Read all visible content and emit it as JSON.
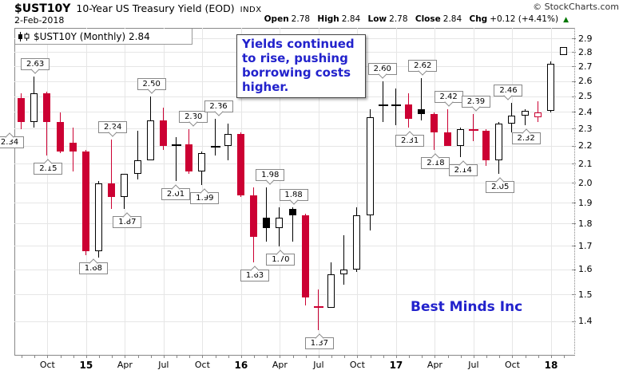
{
  "header": {
    "symbol": "$UST10Y",
    "title": "10-Year US Treasury Yield (EOD)",
    "exchange": "INDX",
    "date": "2-Feb-2018",
    "copyright": "© StockCharts.com",
    "quote": {
      "fields": [
        {
          "label": "Open",
          "value": "2.78"
        },
        {
          "label": "High",
          "value": "2.84"
        },
        {
          "label": "Low",
          "value": "2.78"
        },
        {
          "label": "Close",
          "value": "2.84"
        },
        {
          "label": "Chg",
          "value": "+0.12 (+4.41%)"
        }
      ],
      "direction_symbol": "▲",
      "direction": "up"
    }
  },
  "legend": {
    "text": "$UST10Y (Monthly) 2.84"
  },
  "annotations": {
    "callout": "Yields continued to rise, pushing borrowing costs higher.",
    "watermark": "Best Minds Inc"
  },
  "colors": {
    "down_red": "#cc0033",
    "up_border": "#000000",
    "black_fill": "#000000",
    "annotation_blue": "#2222cc",
    "grid": "#e6e6e6",
    "axis": "#888888",
    "chg_up_green": "#007700"
  },
  "chart_data": {
    "type": "candlestick",
    "symbol": "$UST10Y",
    "timeframe": "Monthly",
    "scale": "log",
    "grid": true,
    "y_domain": [
      1.285,
      2.984
    ],
    "y_ticks": [
      2.9,
      2.8,
      2.7,
      2.6,
      2.5,
      2.4,
      2.3,
      2.2,
      2.1,
      2.0,
      1.9,
      1.8,
      1.7,
      1.6,
      1.5,
      1.4
    ],
    "x_ticks": [
      {
        "index": 2,
        "label": "Oct",
        "bold": false
      },
      {
        "index": 5,
        "label": "15",
        "bold": true
      },
      {
        "index": 8,
        "label": "Apr",
        "bold": false
      },
      {
        "index": 11,
        "label": "Jul",
        "bold": false
      },
      {
        "index": 14,
        "label": "Oct",
        "bold": false
      },
      {
        "index": 17,
        "label": "16",
        "bold": true
      },
      {
        "index": 20,
        "label": "Apr",
        "bold": false
      },
      {
        "index": 23,
        "label": "Jul",
        "bold": false
      },
      {
        "index": 26,
        "label": "Oct",
        "bold": false
      },
      {
        "index": 29,
        "label": "17",
        "bold": true
      },
      {
        "index": 32,
        "label": "Apr",
        "bold": false
      },
      {
        "index": 35,
        "label": "Jul",
        "bold": false
      },
      {
        "index": 38,
        "label": "Oct",
        "bold": false
      },
      {
        "index": 41,
        "label": "18",
        "bold": true
      }
    ],
    "candles": [
      {
        "date": "Aug 2014",
        "o": 2.49,
        "h": 2.52,
        "l": 2.3,
        "c": 2.34,
        "style": "red",
        "label": {
          "text": "2.34",
          "pos": "below",
          "dx": -16
        }
      },
      {
        "date": "Sep 2014",
        "o": 2.34,
        "h": 2.63,
        "l": 2.31,
        "c": 2.52,
        "style": "white",
        "label": {
          "text": "2.63",
          "pos": "above",
          "dx": 0
        }
      },
      {
        "date": "Oct 2014",
        "o": 2.52,
        "h": 2.53,
        "l": 2.15,
        "c": 2.34,
        "style": "red",
        "label": {
          "text": "2.15",
          "pos": "below",
          "dx": 0
        }
      },
      {
        "date": "Nov 2014",
        "o": 2.34,
        "h": 2.4,
        "l": 2.16,
        "c": 2.17,
        "style": "red"
      },
      {
        "date": "Dec 2014",
        "o": 2.22,
        "h": 2.31,
        "l": 2.06,
        "c": 2.17,
        "style": "red"
      },
      {
        "date": "Jan 2015",
        "o": 2.17,
        "h": 2.18,
        "l": 1.66,
        "c": 1.68,
        "style": "red",
        "label": {
          "text": "1.68",
          "pos": "below",
          "dx": 8
        }
      },
      {
        "date": "Feb 2015",
        "o": 1.68,
        "h": 2.01,
        "l": 1.65,
        "c": 2.0,
        "style": "white"
      },
      {
        "date": "Mar 2015",
        "o": 2.0,
        "h": 2.24,
        "l": 1.87,
        "c": 1.93,
        "style": "red",
        "label": {
          "text": "2.24",
          "pos": "above",
          "dx": 0
        }
      },
      {
        "date": "Apr 2015",
        "o": 1.93,
        "h": 2.05,
        "l": 1.87,
        "c": 2.05,
        "style": "white",
        "label": {
          "text": "1.87",
          "pos": "below",
          "dx": 2
        }
      },
      {
        "date": "May 2015",
        "o": 2.05,
        "h": 2.29,
        "l": 2.02,
        "c": 2.12,
        "style": "white"
      },
      {
        "date": "Jun 2015",
        "o": 2.12,
        "h": 2.5,
        "l": 2.12,
        "c": 2.35,
        "style": "white",
        "label": {
          "text": "2.50",
          "pos": "above",
          "dx": 0
        }
      },
      {
        "date": "Jul 2015",
        "o": 2.35,
        "h": 2.43,
        "l": 2.18,
        "c": 2.2,
        "style": "red"
      },
      {
        "date": "Aug 2015",
        "o": 2.2,
        "h": 2.25,
        "l": 2.01,
        "c": 2.21,
        "style": "white",
        "label": {
          "text": "2.01",
          "pos": "below",
          "dx": -2
        }
      },
      {
        "date": "Sep 2015",
        "o": 2.21,
        "h": 2.3,
        "l": 2.05,
        "c": 2.06,
        "style": "red",
        "label": {
          "text": "2.30",
          "pos": "above",
          "dx": 4
        }
      },
      {
        "date": "Oct 2015",
        "o": 2.06,
        "h": 2.17,
        "l": 1.99,
        "c": 2.16,
        "style": "white",
        "label": {
          "text": "1.99",
          "pos": "below",
          "dx": 2
        }
      },
      {
        "date": "Nov 2015",
        "o": 2.19,
        "h": 2.36,
        "l": 2.15,
        "c": 2.2,
        "style": "black",
        "label": {
          "text": "2.36",
          "pos": "above",
          "dx": 3
        }
      },
      {
        "date": "Dec 2015",
        "o": 2.2,
        "h": 2.33,
        "l": 2.12,
        "c": 2.27,
        "style": "white"
      },
      {
        "date": "Jan 2016",
        "o": 2.27,
        "h": 2.28,
        "l": 1.93,
        "c": 1.94,
        "style": "red"
      },
      {
        "date": "Feb 2016",
        "o": 1.94,
        "h": 1.98,
        "l": 1.63,
        "c": 1.74,
        "style": "red",
        "label": {
          "text": "1.63",
          "pos": "below",
          "dx": 0
        }
      },
      {
        "date": "Mar 2016",
        "o": 1.83,
        "h": 1.98,
        "l": 1.72,
        "c": 1.78,
        "style": "black",
        "label": {
          "text": "1.98",
          "pos": "above",
          "dx": 3
        }
      },
      {
        "date": "Apr 2016",
        "o": 1.78,
        "h": 1.88,
        "l": 1.7,
        "c": 1.83,
        "style": "white",
        "label": {
          "text": "1.70",
          "pos": "below",
          "dx": 0
        }
      },
      {
        "date": "May 2016",
        "o": 1.87,
        "h": 1.88,
        "l": 1.72,
        "c": 1.84,
        "style": "black",
        "label": {
          "text": "1.88",
          "pos": "above",
          "dx": 0
        }
      },
      {
        "date": "Jun 2016",
        "o": 1.84,
        "h": 1.85,
        "l": 1.46,
        "c": 1.49,
        "style": "red"
      },
      {
        "date": "Jul 2016",
        "o": 1.46,
        "h": 1.52,
        "l": 1.37,
        "c": 1.45,
        "style": "red",
        "label": {
          "text": "1.37",
          "pos": "below",
          "dx": 0
        }
      },
      {
        "date": "Aug 2016",
        "o": 1.45,
        "h": 1.63,
        "l": 1.45,
        "c": 1.58,
        "style": "white"
      },
      {
        "date": "Sep 2016",
        "o": 1.58,
        "h": 1.75,
        "l": 1.54,
        "c": 1.6,
        "style": "white"
      },
      {
        "date": "Oct 2016",
        "o": 1.6,
        "h": 1.88,
        "l": 1.59,
        "c": 1.84,
        "style": "white"
      },
      {
        "date": "Nov 2016",
        "o": 1.84,
        "h": 2.42,
        "l": 1.77,
        "c": 2.37,
        "style": "white"
      },
      {
        "date": "Dec 2016",
        "o": 2.45,
        "h": 2.6,
        "l": 2.34,
        "c": 2.44,
        "style": "black",
        "label": {
          "text": "2.60",
          "pos": "above",
          "dx": -2
        }
      },
      {
        "date": "Jan 2017",
        "o": 2.45,
        "h": 2.55,
        "l": 2.32,
        "c": 2.44,
        "style": "black"
      },
      {
        "date": "Feb 2017",
        "o": 2.45,
        "h": 2.52,
        "l": 2.31,
        "c": 2.36,
        "style": "red",
        "label": {
          "text": "2.31",
          "pos": "below",
          "dx": 0
        }
      },
      {
        "date": "Mar 2017",
        "o": 2.42,
        "h": 2.62,
        "l": 2.35,
        "c": 2.39,
        "style": "black",
        "label": {
          "text": "2.62",
          "pos": "above",
          "dx": 0
        }
      },
      {
        "date": "Apr 2017",
        "o": 2.39,
        "h": 2.4,
        "l": 2.18,
        "c": 2.28,
        "style": "red",
        "label": {
          "text": "2.18",
          "pos": "below",
          "dx": 0
        }
      },
      {
        "date": "May 2017",
        "o": 2.28,
        "h": 2.42,
        "l": 2.2,
        "c": 2.2,
        "style": "red",
        "label": {
          "text": "2.42",
          "pos": "above",
          "dx": 0
        }
      },
      {
        "date": "Jun 2017",
        "o": 2.2,
        "h": 2.31,
        "l": 2.14,
        "c": 2.3,
        "style": "white",
        "label": {
          "text": "2.14",
          "pos": "below",
          "dx": 2
        }
      },
      {
        "date": "Jul 2017",
        "o": 2.3,
        "h": 2.39,
        "l": 2.23,
        "c": 2.29,
        "style": "red",
        "label": {
          "text": "2.39",
          "pos": "above",
          "dx": 2
        }
      },
      {
        "date": "Aug 2017",
        "o": 2.29,
        "h": 2.3,
        "l": 2.09,
        "c": 2.12,
        "style": "red"
      },
      {
        "date": "Sep 2017",
        "o": 2.12,
        "h": 2.34,
        "l": 2.05,
        "c": 2.33,
        "style": "white",
        "label": {
          "text": "2.05",
          "pos": "below",
          "dx": 0
        }
      },
      {
        "date": "Oct 2017",
        "o": 2.33,
        "h": 2.46,
        "l": 2.28,
        "c": 2.38,
        "style": "white",
        "label": {
          "text": "2.46",
          "pos": "above",
          "dx": -6
        }
      },
      {
        "date": "Nov 2017",
        "o": 2.38,
        "h": 2.42,
        "l": 2.32,
        "c": 2.41,
        "style": "white",
        "label": {
          "text": "2.32",
          "pos": "below",
          "dx": 0
        }
      },
      {
        "date": "Dec 2017",
        "o": 2.37,
        "h": 2.47,
        "l": 2.34,
        "c": 2.4,
        "style": "red-hollow"
      },
      {
        "date": "Jan 2018",
        "o": 2.41,
        "h": 2.74,
        "l": 2.4,
        "c": 2.72,
        "style": "white"
      },
      {
        "date": "Feb 2018",
        "o": 2.78,
        "h": 2.84,
        "l": 2.78,
        "c": 2.84,
        "style": "white"
      }
    ]
  }
}
